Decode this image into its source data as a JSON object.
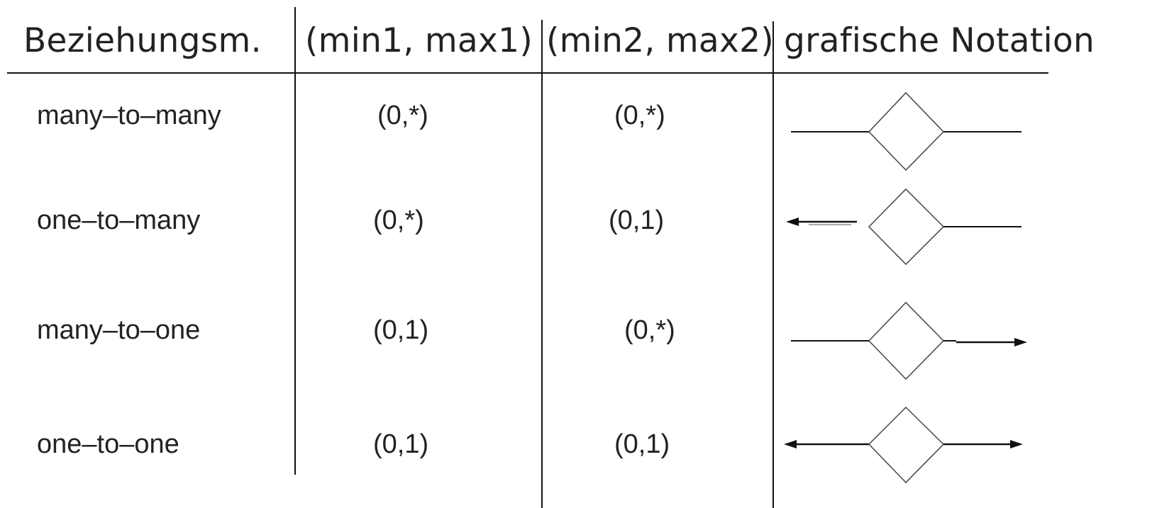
{
  "table": {
    "headers": [
      "Beziehungsm.",
      "(min1, max1)",
      "(min2, max2)",
      "grafische Notation"
    ],
    "rows": [
      {
        "relationship": "many–to–many",
        "min_max_1": "(0,*)",
        "min_max_2": "(0,*)",
        "notation": {
          "left_arrow": false,
          "right_arrow": false
        }
      },
      {
        "relationship": "one–to–many",
        "min_max_1": "(0,*)",
        "min_max_2": "(0,1)",
        "notation": {
          "left_arrow": true,
          "right_arrow": false
        }
      },
      {
        "relationship": "many–to–one",
        "min_max_1": "(0,1)",
        "min_max_2": "(0,*)",
        "notation": {
          "left_arrow": false,
          "right_arrow": true
        }
      },
      {
        "relationship": "one–to–one",
        "min_max_1": "(0,1)",
        "min_max_2": "(0,1)",
        "notation": {
          "left_arrow": true,
          "right_arrow": true
        }
      }
    ]
  },
  "colors": {
    "line": "#111111",
    "diamond": "#444444",
    "text": "#222222"
  },
  "icons": [
    "relationship-diamond-icon",
    "arrow-left-icon",
    "arrow-right-icon"
  ]
}
